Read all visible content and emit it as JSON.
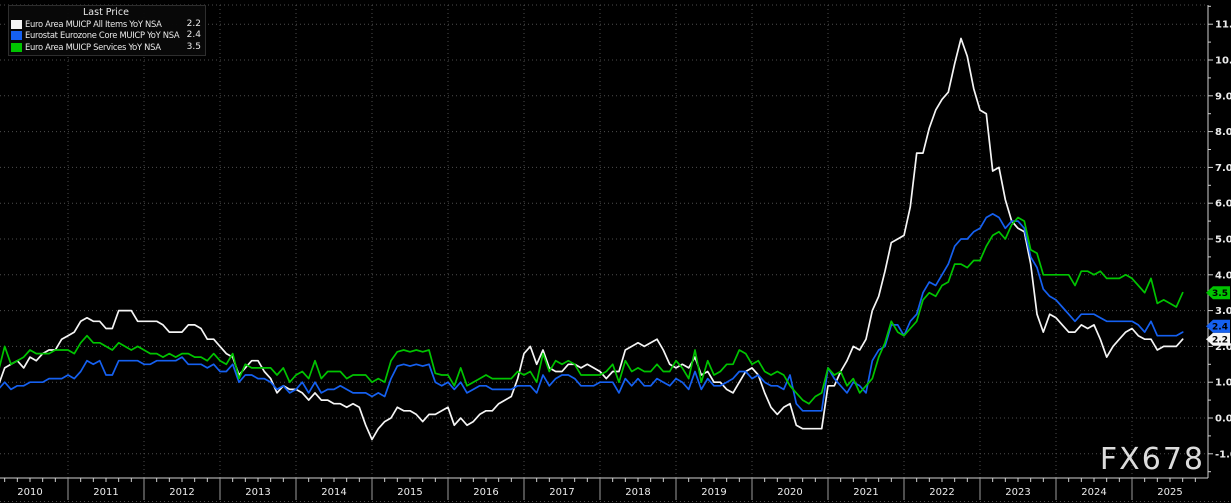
{
  "legend": {
    "title": "Last Price",
    "items": [
      {
        "label": "Euro Area MUICP All Items YoY NSA",
        "value": "2.2",
        "color": "#f5f5f5"
      },
      {
        "label": "Eurostat Eurozone Core MUICP YoY NSA",
        "value": "2.4",
        "color": "#1560f0"
      },
      {
        "label": "Euro Area MUICP Services YoY NSA",
        "value": "3.5",
        "color": "#00c400"
      }
    ]
  },
  "watermark": "FX678",
  "colors": {
    "background": "#000000",
    "grid": "#4d4d4d",
    "axis": "#d0d0d0",
    "tick_label": "#ececec",
    "year_separator": "#9d9d9d",
    "badge_text": "#000000"
  },
  "chart_data": {
    "type": "line",
    "frequency": "monthly",
    "start": "2010-01",
    "end": "2025-09",
    "grid": true,
    "legend_position": "top-left",
    "title": "Last Price",
    "ylim": [
      -1,
      11
    ],
    "y_tick_step": 1,
    "y_tick_labels": [
      "11.0",
      "10.0",
      "9.0",
      "8.0",
      "7.0",
      "6.0",
      "5.0",
      "4.0",
      "3.0",
      "2.0",
      "1.0",
      "0.0",
      "-1.0"
    ],
    "x_tick_labels": [
      "2010",
      "2011",
      "2012",
      "2013",
      "2014",
      "2015",
      "2016",
      "2017",
      "2018",
      "2019",
      "2020",
      "2021",
      "2022",
      "2023",
      "2024",
      "2025"
    ],
    "series": [
      {
        "id": "all-items",
        "name": "Euro Area MUICP All Items YoY NSA",
        "color": "#f5f5f5",
        "last_value": "2.2",
        "values": [
          1.0,
          0.9,
          1.4,
          1.5,
          1.6,
          1.4,
          1.7,
          1.6,
          1.8,
          1.9,
          1.9,
          2.2,
          2.3,
          2.4,
          2.7,
          2.8,
          2.7,
          2.7,
          2.5,
          2.5,
          3.0,
          3.0,
          3.0,
          2.7,
          2.7,
          2.7,
          2.7,
          2.6,
          2.4,
          2.4,
          2.4,
          2.6,
          2.6,
          2.5,
          2.2,
          2.2,
          2.0,
          1.8,
          1.7,
          1.2,
          1.4,
          1.6,
          1.6,
          1.3,
          1.1,
          0.7,
          0.9,
          0.8,
          0.8,
          0.7,
          0.5,
          0.7,
          0.5,
          0.5,
          0.4,
          0.4,
          0.3,
          0.4,
          0.3,
          -0.2,
          -0.6,
          -0.3,
          -0.1,
          0.0,
          0.3,
          0.2,
          0.2,
          0.1,
          -0.1,
          0.1,
          0.1,
          0.2,
          0.3,
          -0.2,
          0.0,
          -0.2,
          -0.1,
          0.1,
          0.2,
          0.2,
          0.4,
          0.5,
          0.6,
          1.1,
          1.8,
          2.0,
          1.5,
          1.9,
          1.4,
          1.3,
          1.3,
          1.5,
          1.5,
          1.4,
          1.5,
          1.4,
          1.3,
          1.1,
          1.3,
          1.3,
          1.9,
          2.0,
          2.1,
          2.0,
          2.1,
          2.2,
          1.9,
          1.5,
          1.4,
          1.5,
          1.4,
          1.7,
          1.2,
          1.3,
          1.0,
          1.0,
          0.8,
          0.7,
          1.0,
          1.3,
          1.4,
          1.2,
          0.7,
          0.3,
          0.1,
          0.3,
          0.4,
          -0.2,
          -0.3,
          -0.3,
          -0.3,
          -0.3,
          0.9,
          0.9,
          1.3,
          1.6,
          2.0,
          1.9,
          2.2,
          3.0,
          3.4,
          4.1,
          4.9,
          5.0,
          5.1,
          5.9,
          7.4,
          7.4,
          8.1,
          8.6,
          8.9,
          9.1,
          9.9,
          10.6,
          10.1,
          9.2,
          8.6,
          8.5,
          6.9,
          7.0,
          6.1,
          5.5,
          5.3,
          5.2,
          4.3,
          2.9,
          2.4,
          2.9,
          2.8,
          2.6,
          2.4,
          2.4,
          2.6,
          2.5,
          2.6,
          2.2,
          1.7,
          2.0,
          2.2,
          2.4,
          2.5,
          2.3,
          2.2,
          2.2,
          1.9,
          2.0,
          2.0,
          2.0,
          2.2
        ]
      },
      {
        "id": "core",
        "name": "Eurostat Eurozone Core MUICP YoY NSA",
        "color": "#1560f0",
        "last_value": "2.4",
        "values": [
          0.9,
          0.8,
          1.0,
          0.8,
          0.9,
          0.9,
          1.0,
          1.0,
          1.0,
          1.1,
          1.1,
          1.1,
          1.2,
          1.1,
          1.3,
          1.6,
          1.5,
          1.6,
          1.2,
          1.2,
          1.6,
          1.6,
          1.6,
          1.6,
          1.5,
          1.5,
          1.6,
          1.6,
          1.6,
          1.6,
          1.7,
          1.5,
          1.5,
          1.5,
          1.4,
          1.5,
          1.3,
          1.3,
          1.5,
          1.0,
          1.2,
          1.2,
          1.1,
          1.1,
          1.0,
          0.8,
          0.9,
          0.7,
          0.8,
          1.0,
          0.7,
          1.0,
          0.7,
          0.8,
          0.8,
          0.9,
          0.8,
          0.7,
          0.7,
          0.7,
          0.6,
          0.7,
          0.6,
          1.1,
          1.45,
          1.5,
          1.45,
          1.5,
          1.45,
          1.5,
          1.0,
          0.9,
          1.0,
          0.8,
          1.0,
          0.7,
          0.8,
          0.9,
          0.9,
          0.8,
          0.8,
          0.8,
          0.8,
          0.9,
          0.9,
          0.9,
          0.7,
          1.2,
          0.9,
          1.1,
          1.2,
          1.2,
          1.1,
          0.9,
          0.9,
          0.9,
          1.0,
          1.0,
          1.0,
          0.7,
          1.1,
          0.9,
          1.1,
          0.9,
          0.9,
          1.1,
          1.0,
          0.9,
          1.1,
          1.0,
          0.8,
          1.3,
          0.8,
          1.1,
          0.9,
          0.9,
          1.0,
          1.1,
          1.3,
          1.3,
          1.1,
          1.2,
          1.0,
          0.9,
          0.9,
          0.8,
          1.2,
          0.4,
          0.2,
          0.2,
          0.2,
          0.2,
          1.4,
          1.1,
          0.9,
          0.7,
          1.0,
          0.9,
          0.7,
          1.6,
          1.9,
          2.0,
          2.6,
          2.6,
          2.3,
          2.7,
          2.9,
          3.5,
          3.8,
          3.7,
          4.0,
          4.3,
          4.8,
          5.0,
          5.0,
          5.2,
          5.3,
          5.6,
          5.7,
          5.6,
          5.3,
          5.5,
          5.5,
          5.3,
          4.5,
          4.2,
          3.6,
          3.4,
          3.3,
          3.1,
          2.9,
          2.7,
          2.9,
          2.9,
          2.9,
          2.8,
          2.7,
          2.7,
          2.7,
          2.7,
          2.7,
          2.6,
          2.4,
          2.7,
          2.3,
          2.3,
          2.3,
          2.3,
          2.4
        ]
      },
      {
        "id": "services",
        "name": "Euro Area MUICP Services YoY NSA",
        "color": "#00c400",
        "last_value": "3.5",
        "values": [
          1.5,
          1.3,
          2.0,
          1.5,
          1.6,
          1.7,
          1.9,
          1.8,
          1.8,
          1.8,
          1.9,
          1.9,
          1.9,
          1.8,
          2.1,
          2.3,
          2.1,
          2.1,
          2.0,
          1.9,
          2.1,
          2.0,
          1.9,
          2.0,
          1.9,
          1.8,
          1.8,
          1.7,
          1.8,
          1.7,
          1.8,
          1.8,
          1.7,
          1.7,
          1.6,
          1.8,
          1.6,
          1.5,
          1.8,
          1.1,
          1.5,
          1.4,
          1.4,
          1.4,
          1.4,
          1.2,
          1.4,
          1.0,
          1.2,
          1.3,
          1.1,
          1.6,
          1.1,
          1.3,
          1.3,
          1.3,
          1.1,
          1.2,
          1.2,
          1.2,
          1.0,
          1.1,
          1.0,
          1.6,
          1.85,
          1.9,
          1.85,
          1.9,
          1.85,
          1.9,
          1.25,
          1.2,
          1.2,
          0.9,
          1.4,
          0.9,
          1.0,
          1.1,
          1.2,
          1.1,
          1.1,
          1.1,
          1.1,
          1.3,
          1.2,
          1.3,
          1.0,
          1.8,
          1.3,
          1.6,
          1.5,
          1.6,
          1.5,
          1.2,
          1.2,
          1.2,
          1.2,
          1.3,
          1.5,
          1.0,
          1.6,
          1.3,
          1.4,
          1.3,
          1.3,
          1.5,
          1.3,
          1.3,
          1.6,
          1.4,
          1.1,
          1.9,
          1.0,
          1.6,
          1.2,
          1.3,
          1.5,
          1.5,
          1.9,
          1.8,
          1.5,
          1.6,
          1.3,
          1.2,
          1.3,
          1.2,
          0.9,
          0.7,
          0.5,
          0.4,
          0.6,
          0.7,
          1.4,
          1.2,
          1.3,
          0.9,
          1.1,
          0.7,
          0.9,
          1.1,
          1.7,
          2.1,
          2.7,
          2.4,
          2.3,
          2.5,
          2.7,
          3.3,
          3.5,
          3.4,
          3.7,
          3.8,
          4.3,
          4.3,
          4.2,
          4.4,
          4.4,
          4.8,
          5.1,
          5.2,
          5.0,
          5.4,
          5.6,
          5.5,
          4.7,
          4.6,
          4.0,
          4.0,
          4.0,
          4.0,
          4.0,
          3.7,
          4.1,
          4.1,
          4.0,
          4.1,
          3.9,
          3.9,
          3.9,
          4.0,
          3.9,
          3.7,
          3.5,
          3.9,
          3.2,
          3.3,
          3.2,
          3.1,
          3.5
        ]
      }
    ]
  }
}
